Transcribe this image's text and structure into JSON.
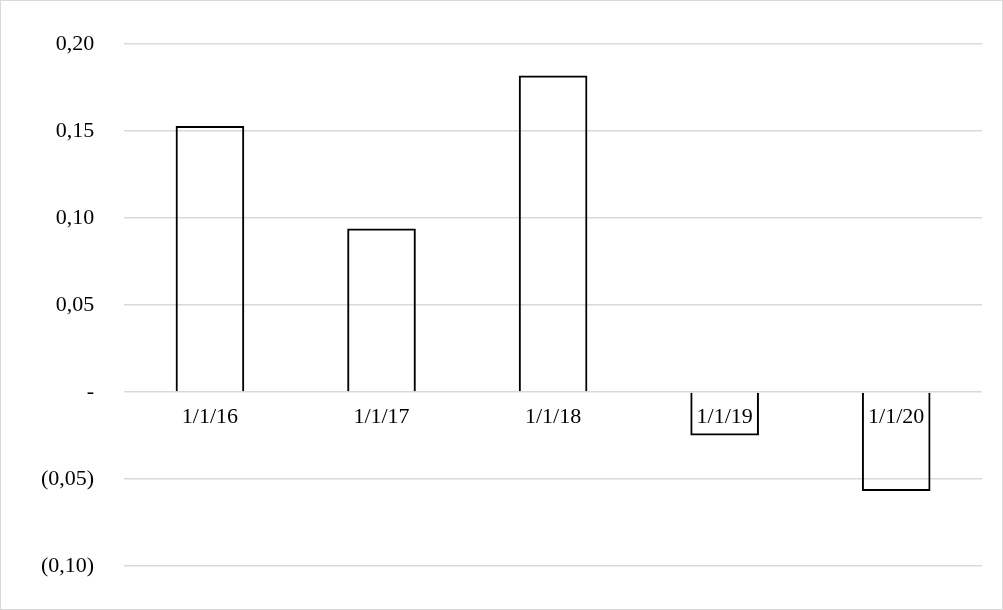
{
  "chart_data": {
    "type": "bar",
    "categories": [
      "1/1/16",
      "1/1/17",
      "1/1/18",
      "1/1/19",
      "1/1/20"
    ],
    "values": [
      0.153,
      0.094,
      0.182,
      -0.025,
      -0.057
    ],
    "color": "#000000",
    "ylim": [
      -0.1,
      0.2
    ],
    "yticks": [
      {
        "value": -0.1,
        "label": "(0,10)"
      },
      {
        "value": -0.05,
        "label": "(0,05)"
      },
      {
        "value": 0,
        "label": "-"
      },
      {
        "value": 0.05,
        "label": "0,05"
      },
      {
        "value": 0.1,
        "label": "0,10"
      },
      {
        "value": 0.15,
        "label": "0,15"
      },
      {
        "value": 0.2,
        "label": "0,20"
      }
    ],
    "grid": "y"
  }
}
